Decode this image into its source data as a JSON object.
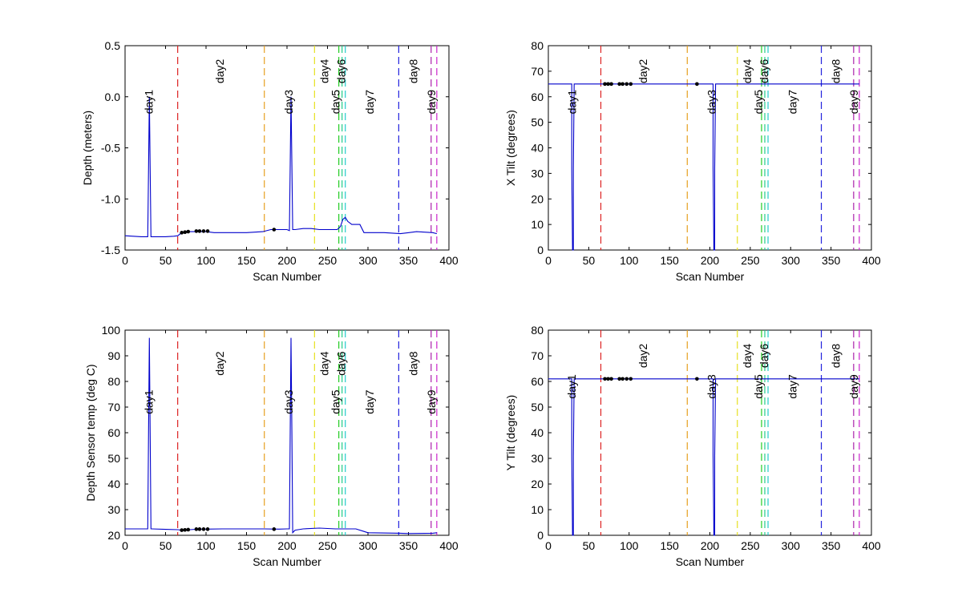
{
  "figure": {
    "background": "#ffffff",
    "line_color": "#0000cc",
    "marker_color": "#000000"
  },
  "chart_data": [
    {
      "type": "line",
      "xlabel": "Scan Number",
      "ylabel": "Depth  (meters)",
      "xlim": [
        0,
        400
      ],
      "ylim": [
        -1.5,
        0.5
      ],
      "xticks": [
        0,
        50,
        100,
        150,
        200,
        250,
        300,
        350,
        400
      ],
      "yticks": [
        -1.5,
        -1.0,
        -0.5,
        0.0,
        0.5
      ],
      "ytick_labels": [
        "-1.5",
        "-1.0",
        "-0.5",
        "0.0",
        "0.5"
      ],
      "series": [
        {
          "x": [
            0,
            10,
            20,
            28,
            29,
            30,
            31,
            32,
            33,
            40,
            50,
            60,
            65,
            70,
            80,
            90,
            100,
            110,
            130,
            150,
            170,
            180,
            190,
            200,
            203,
            204,
            205,
            206,
            207,
            210,
            220,
            230,
            240,
            250,
            262,
            266,
            269,
            272,
            275,
            280,
            290,
            295,
            300,
            320,
            340,
            360,
            380,
            385
          ],
          "y": [
            -1.36,
            -1.365,
            -1.37,
            -1.37,
            -0.7,
            -0.01,
            -0.7,
            -1.37,
            -1.37,
            -1.37,
            -1.37,
            -1.365,
            -1.36,
            -1.33,
            -1.32,
            -1.32,
            -1.32,
            -1.33,
            -1.33,
            -1.33,
            -1.32,
            -1.3,
            -1.3,
            -1.3,
            -1.31,
            -0.67,
            0.0,
            -0.67,
            -1.3,
            -1.3,
            -1.29,
            -1.29,
            -1.3,
            -1.3,
            -1.3,
            -1.27,
            -1.2,
            -1.18,
            -1.22,
            -1.25,
            -1.25,
            -1.33,
            -1.33,
            -1.33,
            -1.34,
            -1.32,
            -1.33,
            -1.34
          ]
        }
      ],
      "markers": {
        "x": [
          70,
          74,
          78,
          88,
          92,
          97,
          102,
          184
        ],
        "y": [
          -1.33,
          -1.325,
          -1.32,
          -1.315,
          -1.315,
          -1.315,
          -1.315,
          -1.3
        ]
      },
      "vlines": [
        {
          "x": 30,
          "color": "#0000cc",
          "style": "solid",
          "ylim": [
            -0.02,
            0.0
          ]
        },
        {
          "x": 65,
          "color": "#dd2222"
        },
        {
          "x": 172,
          "color": "#e6a020"
        },
        {
          "x": 234,
          "color": "#e6e020"
        },
        {
          "x": 264,
          "color": "#22cc22"
        },
        {
          "x": 268,
          "color": "#22cc88"
        },
        {
          "x": 272,
          "color": "#22cccc"
        },
        {
          "x": 338,
          "color": "#2222dd"
        },
        {
          "x": 378,
          "color": "#aa22aa"
        },
        {
          "x": 385,
          "color": "#cc22cc"
        }
      ],
      "annotations": [
        {
          "text": "day1",
          "x": 34,
          "y": -0.05
        },
        {
          "text": "day2",
          "x": 122,
          "y": 0.25
        },
        {
          "text": "day3",
          "x": 207,
          "y": -0.05
        },
        {
          "text": "day4",
          "x": 251,
          "y": 0.25
        },
        {
          "text": "day5",
          "x": 265,
          "y": -0.05
        },
        {
          "text": "day6",
          "x": 272,
          "y": 0.25
        },
        {
          "text": "day7",
          "x": 307,
          "y": -0.05
        },
        {
          "text": "day8",
          "x": 361,
          "y": 0.25
        },
        {
          "text": "day9",
          "x": 383,
          "y": -0.05
        }
      ]
    },
    {
      "type": "line",
      "xlabel": "Scan Number",
      "ylabel": "X Tilt  (degrees)",
      "xlim": [
        0,
        400
      ],
      "ylim": [
        0,
        80
      ],
      "xticks": [
        0,
        50,
        100,
        150,
        200,
        250,
        300,
        350,
        400
      ],
      "yticks": [
        0,
        10,
        20,
        30,
        40,
        50,
        60,
        70,
        80
      ],
      "ytick_labels": [
        "0",
        "10",
        "20",
        "30",
        "40",
        "50",
        "60",
        "70",
        "80"
      ],
      "series": [
        {
          "x": [
            0,
            29,
            29,
            30,
            31,
            31,
            32,
            32,
            204,
            204,
            205,
            206,
            206,
            207,
            207,
            385
          ],
          "y": [
            65,
            65,
            32,
            0,
            0,
            32,
            65,
            65,
            65,
            32,
            0,
            0,
            32,
            65,
            65,
            65
          ]
        }
      ],
      "markers": {
        "x": [
          70,
          74,
          78,
          88,
          92,
          97,
          102,
          184
        ],
        "y": [
          65,
          65,
          65,
          65,
          65,
          65,
          65,
          65
        ]
      },
      "vlines": [
        {
          "x": 65,
          "color": "#dd2222"
        },
        {
          "x": 172,
          "color": "#e6a020"
        },
        {
          "x": 234,
          "color": "#e6e020"
        },
        {
          "x": 264,
          "color": "#22cc22"
        },
        {
          "x": 268,
          "color": "#22cc88"
        },
        {
          "x": 272,
          "color": "#22cccc"
        },
        {
          "x": 338,
          "color": "#2222dd"
        },
        {
          "x": 378,
          "color": "#aa22aa"
        },
        {
          "x": 385,
          "color": "#cc22cc"
        }
      ],
      "annotations": [
        {
          "text": "day1",
          "x": 34,
          "y": 58
        },
        {
          "text": "day2",
          "x": 122,
          "y": 70
        },
        {
          "text": "day3",
          "x": 207,
          "y": 58
        },
        {
          "text": "day4",
          "x": 251,
          "y": 70
        },
        {
          "text": "day5",
          "x": 265,
          "y": 58
        },
        {
          "text": "day6",
          "x": 272,
          "y": 70
        },
        {
          "text": "day7",
          "x": 307,
          "y": 58
        },
        {
          "text": "day8",
          "x": 361,
          "y": 70
        },
        {
          "text": "day9",
          "x": 383,
          "y": 58
        }
      ]
    },
    {
      "type": "line",
      "xlabel": "Scan Number",
      "ylabel": "Depth Sensor temp (deg C)",
      "xlim": [
        0,
        400
      ],
      "ylim": [
        20,
        100
      ],
      "xticks": [
        0,
        50,
        100,
        150,
        200,
        250,
        300,
        350,
        400
      ],
      "yticks": [
        20,
        30,
        40,
        50,
        60,
        70,
        80,
        90,
        100
      ],
      "ytick_labels": [
        "20",
        "30",
        "40",
        "50",
        "60",
        "70",
        "80",
        "90",
        "100"
      ],
      "series": [
        {
          "x": [
            0,
            10,
            20,
            28,
            29,
            30,
            31,
            32,
            33,
            50,
            65,
            70,
            80,
            90,
            100,
            120,
            150,
            172,
            190,
            200,
            203,
            204,
            205,
            206,
            207,
            210,
            220,
            240,
            260,
            275,
            285,
            295,
            300,
            340,
            350,
            380,
            385
          ],
          "y": [
            22.5,
            22.5,
            22.5,
            22.5,
            60,
            97,
            60,
            22.5,
            22.5,
            22.3,
            22.2,
            22.0,
            22.2,
            22.4,
            22.4,
            22.5,
            22.5,
            22.5,
            22.4,
            22.5,
            22.5,
            60,
            97,
            60,
            21.0,
            22.0,
            22.5,
            22.8,
            22.5,
            22.5,
            22.5,
            21.5,
            21.0,
            20.8,
            20.7,
            20.8,
            21.0
          ]
        }
      ],
      "markers": {
        "x": [
          70,
          74,
          78,
          88,
          92,
          97,
          102,
          184
        ],
        "y": [
          22.0,
          22.1,
          22.2,
          22.4,
          22.4,
          22.4,
          22.4,
          22.4
        ]
      },
      "vlines": [
        {
          "x": 65,
          "color": "#dd2222"
        },
        {
          "x": 172,
          "color": "#e6a020"
        },
        {
          "x": 234,
          "color": "#e6e020"
        },
        {
          "x": 264,
          "color": "#22cc22"
        },
        {
          "x": 268,
          "color": "#22cc88"
        },
        {
          "x": 272,
          "color": "#22cccc"
        },
        {
          "x": 338,
          "color": "#2222dd"
        },
        {
          "x": 378,
          "color": "#aa22aa"
        },
        {
          "x": 385,
          "color": "#cc22cc"
        }
      ],
      "annotations": [
        {
          "text": "day1",
          "x": 34,
          "y": 72
        },
        {
          "text": "day2",
          "x": 122,
          "y": 87
        },
        {
          "text": "day3",
          "x": 207,
          "y": 72
        },
        {
          "text": "day4",
          "x": 251,
          "y": 87
        },
        {
          "text": "day5",
          "x": 265,
          "y": 72
        },
        {
          "text": "day6",
          "x": 272,
          "y": 87
        },
        {
          "text": "day7",
          "x": 307,
          "y": 72
        },
        {
          "text": "day8",
          "x": 361,
          "y": 87
        },
        {
          "text": "day9",
          "x": 383,
          "y": 72
        }
      ]
    },
    {
      "type": "line",
      "xlabel": "Scan Number",
      "ylabel": "Y Tilt  (degrees)",
      "xlim": [
        0,
        400
      ],
      "ylim": [
        0,
        80
      ],
      "xticks": [
        0,
        50,
        100,
        150,
        200,
        250,
        300,
        350,
        400
      ],
      "yticks": [
        0,
        10,
        20,
        30,
        40,
        50,
        60,
        70,
        80
      ],
      "ytick_labels": [
        "0",
        "10",
        "20",
        "30",
        "40",
        "50",
        "60",
        "70",
        "80"
      ],
      "series": [
        {
          "x": [
            0,
            29,
            29,
            30,
            31,
            31,
            32,
            32,
            204,
            204,
            205,
            206,
            206,
            207,
            207,
            385
          ],
          "y": [
            61,
            61,
            31,
            0,
            0,
            31,
            61,
            61,
            61,
            31,
            0,
            0,
            31,
            61,
            61,
            61
          ]
        }
      ],
      "markers": {
        "x": [
          70,
          74,
          78,
          88,
          92,
          97,
          102,
          184
        ],
        "y": [
          61,
          61,
          61,
          61,
          61,
          61,
          61,
          61
        ]
      },
      "vlines": [
        {
          "x": 65,
          "color": "#dd2222"
        },
        {
          "x": 172,
          "color": "#e6a020"
        },
        {
          "x": 234,
          "color": "#e6e020"
        },
        {
          "x": 264,
          "color": "#22cc22"
        },
        {
          "x": 268,
          "color": "#22cc88"
        },
        {
          "x": 272,
          "color": "#22cccc"
        },
        {
          "x": 338,
          "color": "#2222dd"
        },
        {
          "x": 378,
          "color": "#aa22aa"
        },
        {
          "x": 385,
          "color": "#cc22cc"
        }
      ],
      "annotations": [
        {
          "text": "day1",
          "x": 34,
          "y": 58
        },
        {
          "text": "day2",
          "x": 122,
          "y": 70
        },
        {
          "text": "day3",
          "x": 207,
          "y": 58
        },
        {
          "text": "day4",
          "x": 251,
          "y": 70
        },
        {
          "text": "day5",
          "x": 265,
          "y": 58
        },
        {
          "text": "day6",
          "x": 272,
          "y": 70
        },
        {
          "text": "day7",
          "x": 307,
          "y": 58
        },
        {
          "text": "day8",
          "x": 361,
          "y": 70
        },
        {
          "text": "day9",
          "x": 383,
          "y": 58
        }
      ]
    }
  ]
}
